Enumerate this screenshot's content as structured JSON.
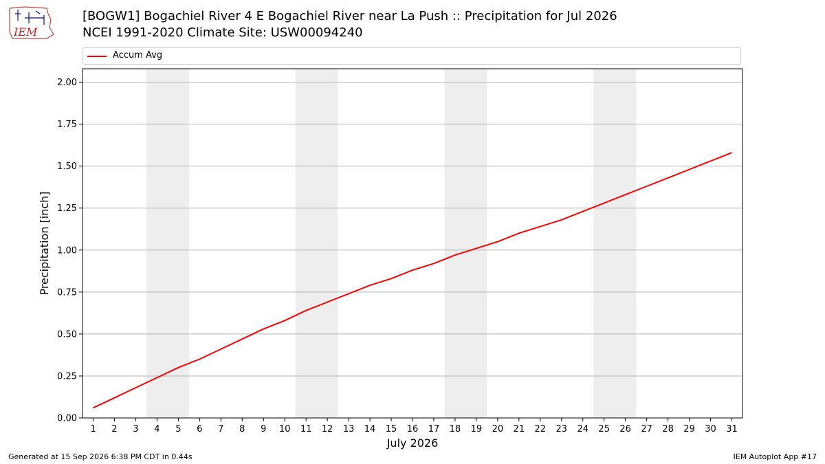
{
  "header": {
    "title_line1": "[BOGW1] Bogachiel River 4 E Bogachiel River near La Push :: Precipitation for Jul 2026",
    "title_line2": "NCEI 1991-2020 Climate Site: USW00094240"
  },
  "logo": {
    "text": "IEM"
  },
  "footer": {
    "left": "Generated at 15 Sep 2026 6:38 PM CDT in 0.44s",
    "right": "IEM Autoplot App #17"
  },
  "chart_data": {
    "type": "line",
    "title": "[BOGW1] Bogachiel River 4 E Bogachiel River near La Push :: Precipitation for Jul 2026",
    "subtitle": "NCEI 1991-2020 Climate Site: USW00094240",
    "xlabel": "July 2026",
    "ylabel": "Precipitation [inch]",
    "x": [
      1,
      2,
      3,
      4,
      5,
      6,
      7,
      8,
      9,
      10,
      11,
      12,
      13,
      14,
      15,
      16,
      17,
      18,
      19,
      20,
      21,
      22,
      23,
      24,
      25,
      26,
      27,
      28,
      29,
      30,
      31
    ],
    "xlim": [
      0.5,
      31.5
    ],
    "ylim": [
      0,
      2.08
    ],
    "yticks": [
      0.0,
      0.25,
      0.5,
      0.75,
      1.0,
      1.25,
      1.5,
      1.75,
      2.0
    ],
    "ytick_labels": [
      "0.00",
      "0.25",
      "0.50",
      "0.75",
      "1.00",
      "1.25",
      "1.50",
      "1.75",
      "2.00"
    ],
    "grid": "horizontal",
    "legend_position": "top",
    "weekend_shading": [
      [
        3.5,
        5.5
      ],
      [
        10.5,
        12.5
      ],
      [
        17.5,
        19.5
      ],
      [
        24.5,
        26.5
      ]
    ],
    "series": [
      {
        "name": "Accum Avg",
        "color": "#ff0000",
        "values": [
          0.06,
          0.12,
          0.18,
          0.24,
          0.3,
          0.35,
          0.41,
          0.47,
          0.53,
          0.58,
          0.64,
          0.69,
          0.74,
          0.79,
          0.83,
          0.88,
          0.92,
          0.97,
          1.01,
          1.05,
          1.1,
          1.14,
          1.18,
          1.23,
          1.28,
          1.33,
          1.38,
          1.43,
          1.48,
          1.53,
          1.58
        ]
      }
    ]
  }
}
